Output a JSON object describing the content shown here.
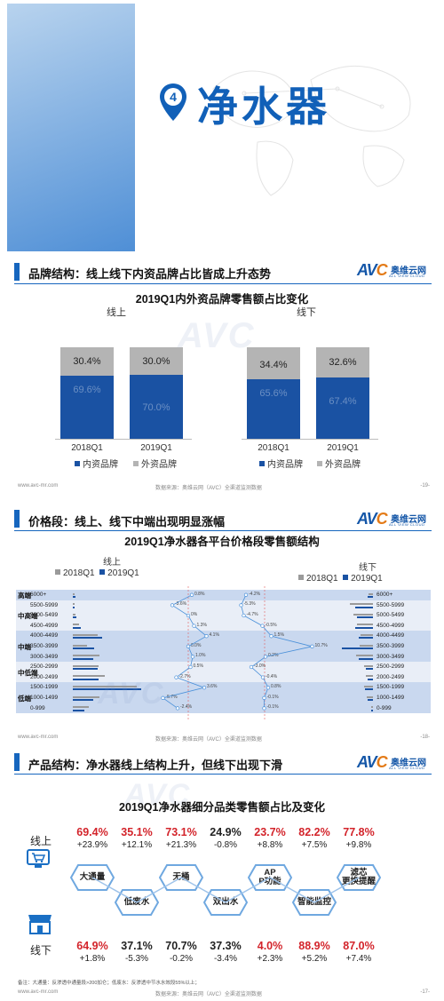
{
  "banner": {
    "number": "4",
    "title": "净水器"
  },
  "logo": {
    "brand_a": "AV",
    "brand_b": "C",
    "cn": "奥维云网",
    "en": "ALL VIEW CLOUD"
  },
  "watermark": "AVC",
  "slide1": {
    "heading": "品牌结构：线上线下内资品牌占比皆成上升态势",
    "footer_left": "www.avc-mr.com",
    "footer_center": "数据来源：奥维云网（AVC）全渠道监测数据",
    "page": "-19-"
  },
  "slide2": {
    "heading": "价格段：线上、线下中端出现明显涨幅",
    "footer_left": "www.avc-mr.com",
    "footer_center": "数据来源：奥维云网（AVC）全渠道监测数据",
    "page": "-18-"
  },
  "slide3": {
    "heading": "产品结构：净水器线上结构上升，但线下出现下滑",
    "footer_left": "www.avc-mr.com",
    "footer_center": "数据来源：奥维云网（AVC）全渠道监测数据",
    "note": "备注：大通量：反渗透中通量段>200加仑；低废水：反渗透中节水水效段55%以上；",
    "page": "-17-"
  },
  "chart_data": [
    {
      "type": "bar",
      "stacked": true,
      "percent": true,
      "title": "2019Q1内外资品牌零售额占比变化",
      "panels": [
        {
          "name": "线上",
          "categories": [
            "2018Q1",
            "2019Q1"
          ],
          "series": [
            {
              "name": "内资品牌",
              "values": [
                69.6,
                70.0
              ],
              "labels": [
                "69.6%",
                "70.0%"
              ],
              "color": "#1a52a3"
            },
            {
              "name": "外资品牌",
              "values": [
                30.4,
                30.0
              ],
              "labels": [
                "30.4%",
                "30.0%"
              ],
              "color": "#b4b4b4"
            }
          ]
        },
        {
          "name": "线下",
          "categories": [
            "2018Q1",
            "2019Q1"
          ],
          "series": [
            {
              "name": "内资品牌",
              "values": [
                65.6,
                67.4
              ],
              "labels": [
                "65.6%",
                "67.4%"
              ],
              "color": "#1a52a3"
            },
            {
              "name": "外资品牌",
              "values": [
                34.4,
                32.6
              ],
              "labels": [
                "34.4%",
                "32.6%"
              ],
              "color": "#b4b4b4"
            }
          ]
        }
      ],
      "legend": [
        "内资品牌",
        "外资品牌"
      ],
      "legend_position": "bottom"
    },
    {
      "type": "bar",
      "orientation": "horizontal",
      "title": "2019Q1净水器各平台价格段零售额结构",
      "panels": [
        {
          "name": "线上",
          "legend": [
            "2018Q1",
            "2019Q1"
          ]
        },
        {
          "name": "线下",
          "legend": [
            "2018Q1",
            "2019Q1"
          ]
        }
      ],
      "series_colors": {
        "2018Q1": "#9a9a9a",
        "2019Q1": "#1a52a3"
      },
      "groups": [
        {
          "name": "高端",
          "rows": [
            "6000+"
          ]
        },
        {
          "name": "中高端",
          "rows": [
            "5500-5999",
            "5000-5499",
            "4500-4999"
          ]
        },
        {
          "name": "中端",
          "rows": [
            "4000-4499",
            "3500-3999",
            "3000-3499"
          ]
        },
        {
          "name": "中低端",
          "rows": [
            "2500-2999",
            "2000-2499"
          ]
        },
        {
          "name": "低端",
          "rows": [
            "1500-1999",
            "1000-1499",
            "0-999"
          ]
        }
      ],
      "rows": [
        "6000+",
        "5500-5999",
        "5000-5499",
        "4500-4999",
        "4000-4499",
        "3500-3999",
        "3000-3499",
        "2500-2999",
        "2000-2499",
        "1500-1999",
        "1000-1499",
        "0-999"
      ],
      "online": {
        "2018Q1": [
          1.0,
          0.8,
          1.5,
          3.5,
          14.0,
          8.0,
          15.0,
          14.5,
          18.0,
          36.0,
          15.0,
          9.0
        ],
        "2019Q1": [
          1.5,
          1.2,
          2.0,
          4.5,
          16.5,
          12.0,
          11.5,
          14.0,
          14.5,
          38.5,
          11.5,
          6.5
        ],
        "change_labels": [
          "0.8%",
          "-3.6%",
          "0%",
          "1.3%",
          "4.1%",
          "0.0%",
          "1.0%",
          "0.5%",
          "-2.7%",
          "3.6%",
          "-5.7%",
          "-2.4%"
        ],
        "change": [
          0.8,
          -3.6,
          0,
          1.3,
          4.1,
          0.0,
          1.0,
          0.5,
          -2.7,
          3.6,
          -5.7,
          -2.4
        ]
      },
      "offline": {
        "2018Q1": [
          2.5,
          13.0,
          11.0,
          9.0,
          7.0,
          7.5,
          9.5,
          5.0,
          4.0,
          5.0,
          3.5,
          1.0
        ],
        "2019Q1": [
          3.0,
          10.0,
          9.0,
          10.0,
          8.0,
          17.5,
          8.0,
          4.0,
          3.0,
          4.5,
          3.0,
          0.8
        ],
        "change_labels": [
          "-4.2%",
          "-5.3%",
          "-4.7%",
          "-0.5%",
          "1.5%",
          "10.7%",
          "0.2%",
          "-3.0%",
          "-0.4%",
          "0.8%",
          "-0.1%",
          "-0.1%"
        ],
        "change": [
          -4.2,
          -5.3,
          -4.7,
          -0.5,
          1.5,
          10.7,
          0.2,
          -3.0,
          -0.4,
          0.8,
          -0.1,
          -0.1
        ]
      }
    },
    {
      "type": "table",
      "title": "2019Q1净水器细分品类零售额占比及变化",
      "categories": [
        "大通量",
        "低废水",
        "无桶",
        "双出水",
        "APP功能",
        "智能监控",
        "滤芯更换提醒"
      ],
      "online": {
        "label": "线上",
        "share": [
          "69.4%",
          "35.1%",
          "73.1%",
          "24.9%",
          "23.7%",
          "82.2%",
          "77.8%"
        ],
        "change": [
          "+23.9%",
          "+12.1%",
          "+21.3%",
          "-0.8%",
          "+8.8%",
          "+7.5%",
          "+9.8%"
        ]
      },
      "offline": {
        "label": "线下",
        "share": [
          "64.9%",
          "37.1%",
          "70.7%",
          "37.3%",
          "4.0%",
          "88.9%",
          "87.0%"
        ],
        "change": [
          "+1.8%",
          "-5.3%",
          "-0.2%",
          "-3.4%",
          "+2.3%",
          "+5.2%",
          "+7.4%"
        ]
      }
    }
  ]
}
